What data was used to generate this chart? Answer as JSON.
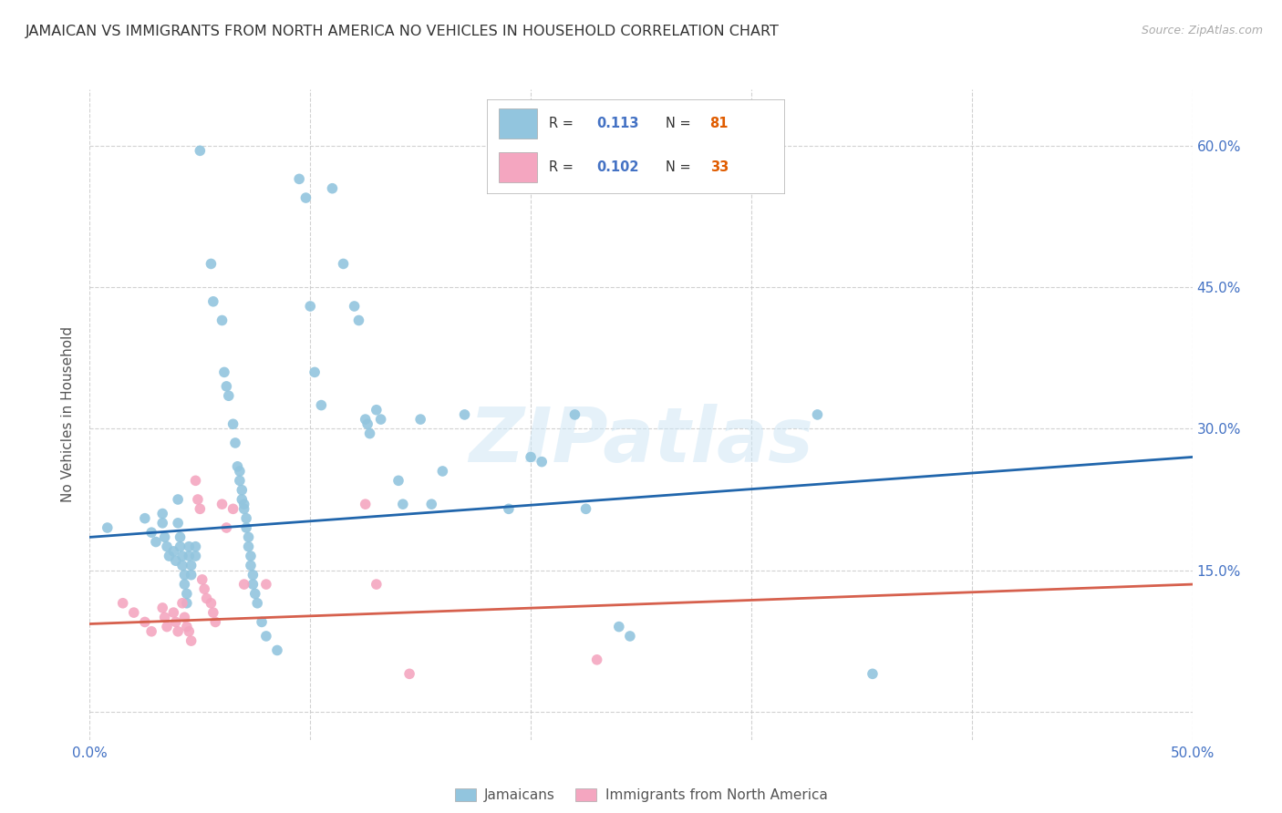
{
  "title": "JAMAICAN VS IMMIGRANTS FROM NORTH AMERICA NO VEHICLES IN HOUSEHOLD CORRELATION CHART",
  "source": "Source: ZipAtlas.com",
  "ylabel": "No Vehicles in Household",
  "xlim": [
    0.0,
    0.5
  ],
  "ylim": [
    -0.03,
    0.66
  ],
  "x_ticks": [
    0.0,
    0.1,
    0.2,
    0.3,
    0.4,
    0.5
  ],
  "x_tick_labels": [
    "0.0%",
    "",
    "",
    "",
    "",
    "50.0%"
  ],
  "y_ticks": [
    0.0,
    0.15,
    0.3,
    0.45,
    0.6
  ],
  "y_tick_labels": [
    "",
    "15.0%",
    "30.0%",
    "45.0%",
    "60.0%"
  ],
  "blue_color": "#92c5de",
  "pink_color": "#f4a6c0",
  "blue_line_color": "#2166ac",
  "pink_line_color": "#d6604d",
  "blue_line": [
    [
      0.0,
      0.185
    ],
    [
      0.5,
      0.27
    ]
  ],
  "pink_line": [
    [
      0.0,
      0.093
    ],
    [
      0.5,
      0.135
    ]
  ],
  "blue_scatter": [
    [
      0.008,
      0.195
    ],
    [
      0.025,
      0.205
    ],
    [
      0.028,
      0.19
    ],
    [
      0.03,
      0.18
    ],
    [
      0.033,
      0.21
    ],
    [
      0.033,
      0.2
    ],
    [
      0.034,
      0.185
    ],
    [
      0.035,
      0.175
    ],
    [
      0.036,
      0.165
    ],
    [
      0.038,
      0.17
    ],
    [
      0.039,
      0.16
    ],
    [
      0.04,
      0.225
    ],
    [
      0.04,
      0.2
    ],
    [
      0.041,
      0.185
    ],
    [
      0.041,
      0.175
    ],
    [
      0.042,
      0.165
    ],
    [
      0.042,
      0.155
    ],
    [
      0.043,
      0.145
    ],
    [
      0.043,
      0.135
    ],
    [
      0.044,
      0.125
    ],
    [
      0.044,
      0.115
    ],
    [
      0.045,
      0.175
    ],
    [
      0.045,
      0.165
    ],
    [
      0.046,
      0.155
    ],
    [
      0.046,
      0.145
    ],
    [
      0.048,
      0.175
    ],
    [
      0.048,
      0.165
    ],
    [
      0.05,
      0.595
    ],
    [
      0.055,
      0.475
    ],
    [
      0.056,
      0.435
    ],
    [
      0.06,
      0.415
    ],
    [
      0.061,
      0.36
    ],
    [
      0.062,
      0.345
    ],
    [
      0.063,
      0.335
    ],
    [
      0.065,
      0.305
    ],
    [
      0.066,
      0.285
    ],
    [
      0.067,
      0.26
    ],
    [
      0.068,
      0.255
    ],
    [
      0.068,
      0.245
    ],
    [
      0.069,
      0.235
    ],
    [
      0.069,
      0.225
    ],
    [
      0.07,
      0.22
    ],
    [
      0.07,
      0.215
    ],
    [
      0.071,
      0.205
    ],
    [
      0.071,
      0.195
    ],
    [
      0.072,
      0.185
    ],
    [
      0.072,
      0.175
    ],
    [
      0.073,
      0.165
    ],
    [
      0.073,
      0.155
    ],
    [
      0.074,
      0.145
    ],
    [
      0.074,
      0.135
    ],
    [
      0.075,
      0.125
    ],
    [
      0.076,
      0.115
    ],
    [
      0.078,
      0.095
    ],
    [
      0.08,
      0.08
    ],
    [
      0.085,
      0.065
    ],
    [
      0.095,
      0.565
    ],
    [
      0.098,
      0.545
    ],
    [
      0.1,
      0.43
    ],
    [
      0.102,
      0.36
    ],
    [
      0.105,
      0.325
    ],
    [
      0.11,
      0.555
    ],
    [
      0.115,
      0.475
    ],
    [
      0.12,
      0.43
    ],
    [
      0.122,
      0.415
    ],
    [
      0.125,
      0.31
    ],
    [
      0.126,
      0.305
    ],
    [
      0.127,
      0.295
    ],
    [
      0.13,
      0.32
    ],
    [
      0.132,
      0.31
    ],
    [
      0.14,
      0.245
    ],
    [
      0.142,
      0.22
    ],
    [
      0.15,
      0.31
    ],
    [
      0.155,
      0.22
    ],
    [
      0.16,
      0.255
    ],
    [
      0.17,
      0.315
    ],
    [
      0.19,
      0.215
    ],
    [
      0.2,
      0.27
    ],
    [
      0.205,
      0.265
    ],
    [
      0.22,
      0.315
    ],
    [
      0.225,
      0.215
    ],
    [
      0.24,
      0.09
    ],
    [
      0.245,
      0.08
    ],
    [
      0.33,
      0.315
    ],
    [
      0.355,
      0.04
    ]
  ],
  "pink_scatter": [
    [
      0.015,
      0.115
    ],
    [
      0.02,
      0.105
    ],
    [
      0.025,
      0.095
    ],
    [
      0.028,
      0.085
    ],
    [
      0.033,
      0.11
    ],
    [
      0.034,
      0.1
    ],
    [
      0.035,
      0.09
    ],
    [
      0.038,
      0.105
    ],
    [
      0.039,
      0.095
    ],
    [
      0.04,
      0.085
    ],
    [
      0.042,
      0.115
    ],
    [
      0.043,
      0.1
    ],
    [
      0.044,
      0.09
    ],
    [
      0.045,
      0.085
    ],
    [
      0.046,
      0.075
    ],
    [
      0.048,
      0.245
    ],
    [
      0.049,
      0.225
    ],
    [
      0.05,
      0.215
    ],
    [
      0.051,
      0.14
    ],
    [
      0.052,
      0.13
    ],
    [
      0.053,
      0.12
    ],
    [
      0.055,
      0.115
    ],
    [
      0.056,
      0.105
    ],
    [
      0.057,
      0.095
    ],
    [
      0.06,
      0.22
    ],
    [
      0.062,
      0.195
    ],
    [
      0.065,
      0.215
    ],
    [
      0.07,
      0.135
    ],
    [
      0.08,
      0.135
    ],
    [
      0.125,
      0.22
    ],
    [
      0.13,
      0.135
    ],
    [
      0.145,
      0.04
    ],
    [
      0.23,
      0.055
    ]
  ],
  "watermark_text": "ZIPatlas",
  "background_color": "#ffffff",
  "grid_color": "#cccccc"
}
